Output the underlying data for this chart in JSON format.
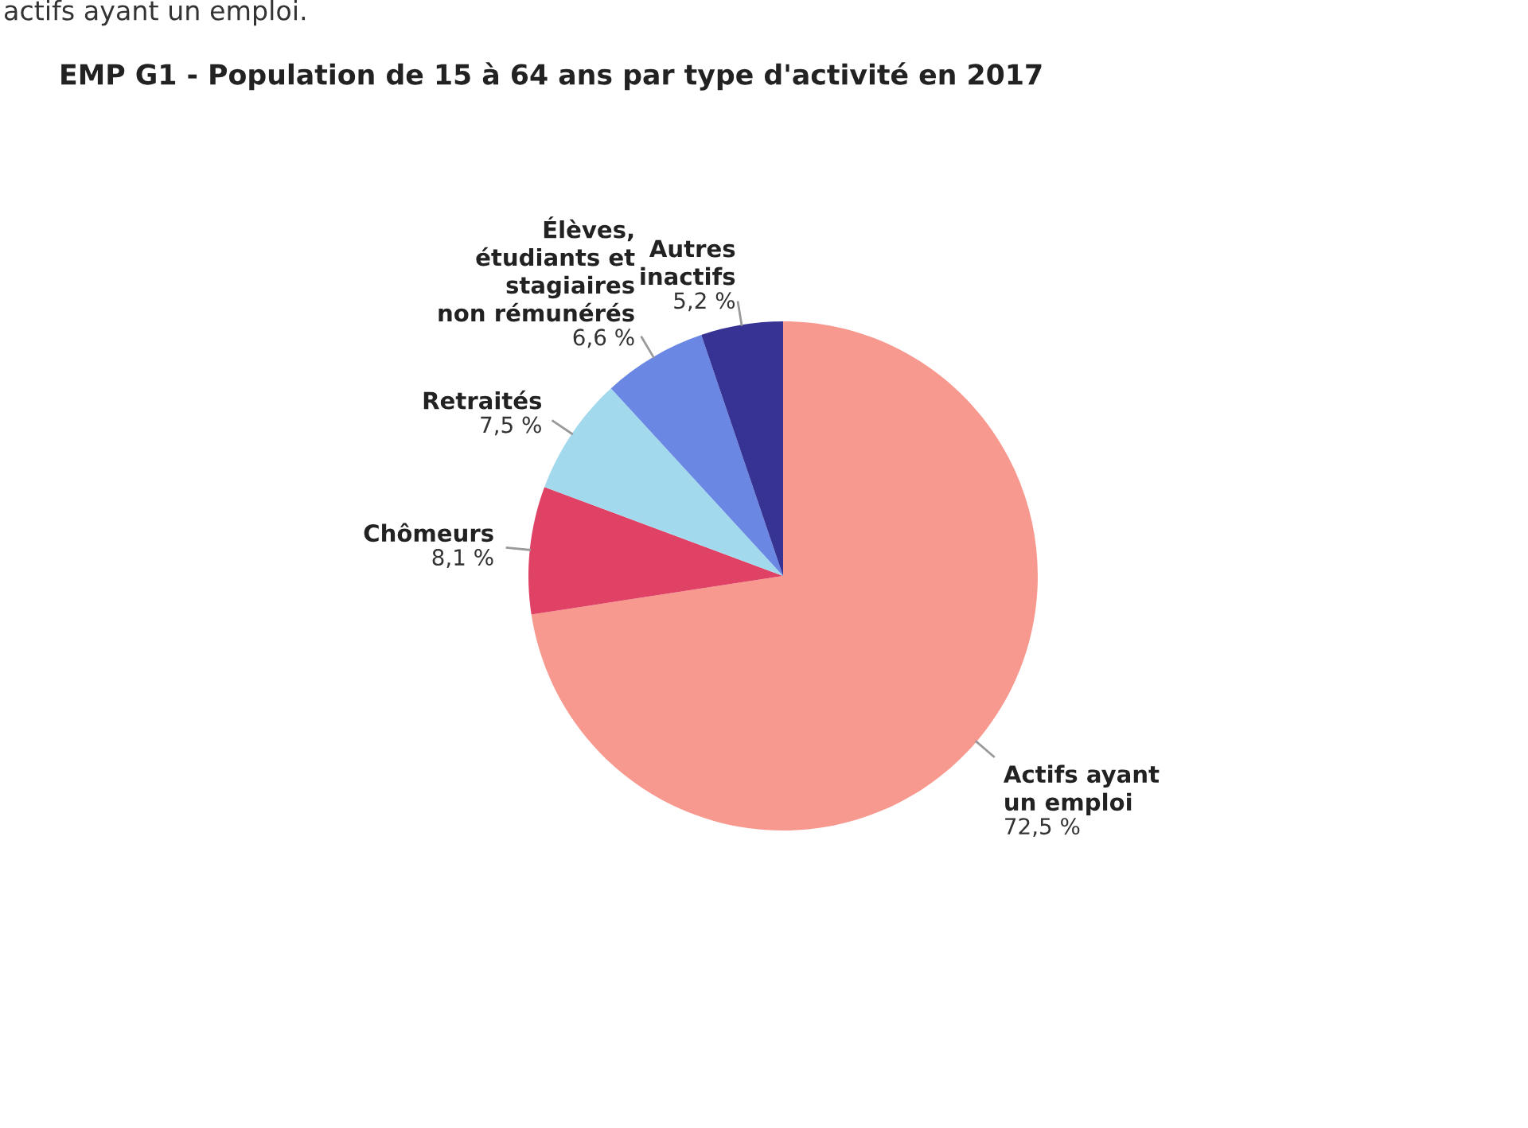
{
  "chart_data": {
    "type": "pie",
    "title": "EMP G1 - Population de 15 à 64 ans par type d'activité en 2017",
    "annotations": [
      "actifs ayant un emploi."
    ],
    "categories": [
      "Actifs ayant\nun emploi",
      "Chômeurs",
      "Retraités",
      "Élèves,\nétudiants et\nstagiaires\nnon rémunérés",
      "Autres\ninactifs"
    ],
    "values": [
      72.5,
      8.1,
      7.5,
      6.6,
      5.2
    ],
    "value_labels": [
      "72,5 %",
      "8,1 %",
      "7,5 %",
      "6,6 %",
      "5,2 %"
    ],
    "colors": [
      "#f8998f",
      "#e04266",
      "#a3d9ec",
      "#6a87e3",
      "#363394"
    ]
  }
}
